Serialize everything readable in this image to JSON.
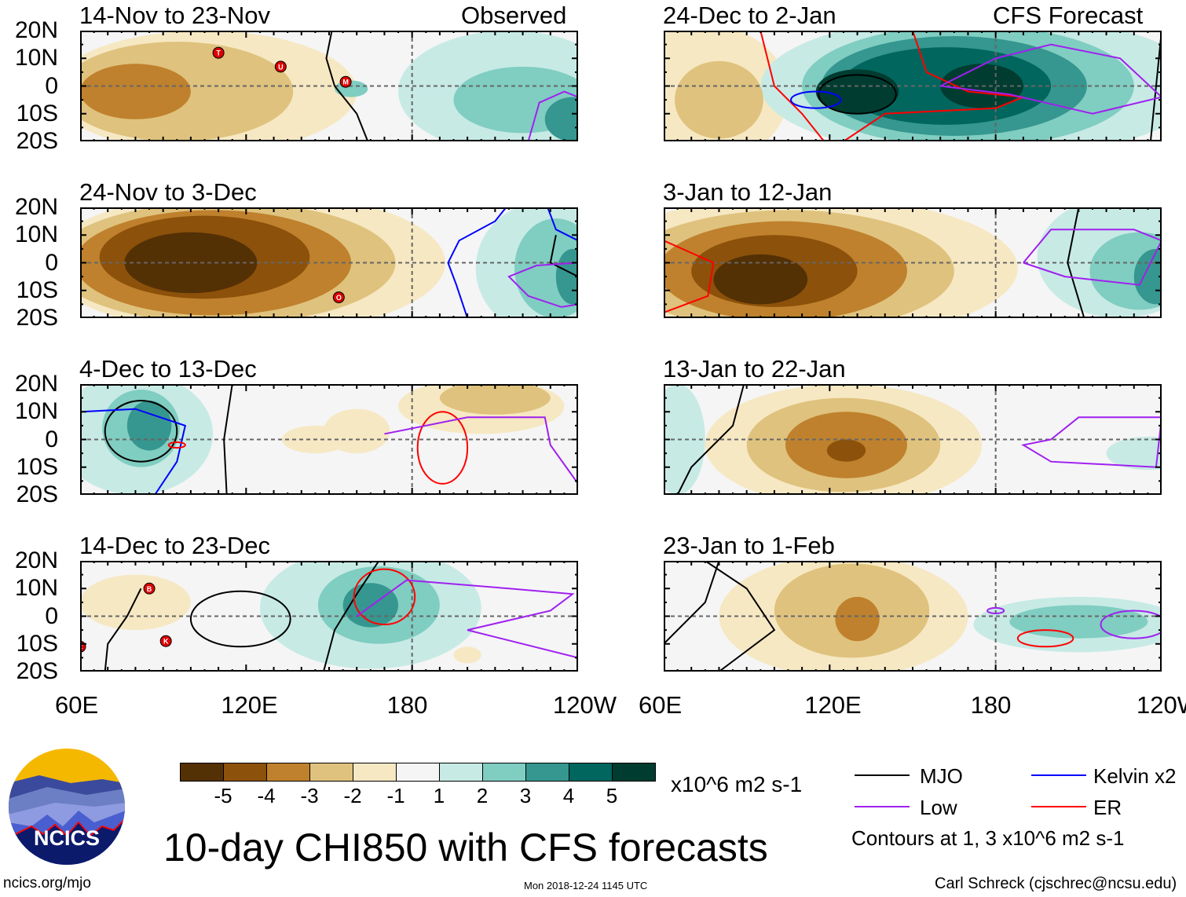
{
  "title": "10-day CHI850 with CFS forecasts",
  "timestamp": "Mon 2018-12-24 1145 UTC",
  "site": "ncics.org/mjo",
  "author": "Carl Schreck (cjschrec@ncsu.edu)",
  "logo_text": "NCICS",
  "column_labels": {
    "left": "Observed",
    "right": "CFS Forecast"
  },
  "lat_labels": [
    "20N",
    "10N",
    "0",
    "10S",
    "20S"
  ],
  "lon_labels": [
    "60E",
    "120E",
    "180",
    "120W"
  ],
  "colorbar": {
    "labels": [
      "-5",
      "-4",
      "-3",
      "-2",
      "-1",
      "1",
      "2",
      "3",
      "4",
      "5"
    ],
    "colors": [
      "#543005",
      "#8c510a",
      "#bf812d",
      "#dfc27d",
      "#f6e8c3",
      "#f5f5f5",
      "#c7eae5",
      "#80cdc1",
      "#35978f",
      "#01665e",
      "#003c30"
    ],
    "units": "x10^6 m2 s-1"
  },
  "legend": {
    "items": [
      {
        "label": "MJO",
        "color": "#000000"
      },
      {
        "label": "Kelvin x2",
        "color": "#0000ff"
      },
      {
        "label": "Low",
        "color": "#a020f0"
      },
      {
        "label": "ER",
        "color": "#ff0000"
      }
    ],
    "note": "Contours at 1, 3 x10^6 m2 s-1"
  },
  "panels": [
    {
      "title": "14-Nov to 23-Nov",
      "col": 0,
      "row": 0,
      "blobs": [
        [
          105,
          -2,
          55,
          22,
          -1
        ],
        [
          95,
          -2,
          42,
          18,
          -2
        ],
        [
          80,
          -2,
          20,
          10,
          -3
        ],
        [
          215,
          -2,
          40,
          22,
          1
        ],
        [
          220,
          -5,
          25,
          12,
          2
        ],
        [
          238,
          -12,
          10,
          8,
          3
        ],
        [
          158,
          -1,
          6,
          3,
          2
        ]
      ],
      "contours": [
        {
          "type": "MJO",
          "pts": [
            [
              151,
              20
            ],
            [
              149,
              10
            ],
            [
              152,
              0
            ],
            [
              160,
              -10
            ],
            [
              164,
              -20
            ]
          ]
        },
        {
          "type": "Low",
          "pts": [
            [
              222,
              -20
            ],
            [
              226,
              -6
            ],
            [
              235,
              -2
            ],
            [
              240,
              -4
            ]
          ]
        }
      ],
      "storms": [
        {
          "letter": "T",
          "lon": 110,
          "lat": 12
        },
        {
          "letter": "U",
          "lon": 132.5,
          "lat": 7
        },
        {
          "letter": "M",
          "lon": 156,
          "lat": 1.5
        }
      ]
    },
    {
      "title": "24-Nov to 3-Dec",
      "col": 0,
      "row": 1,
      "blobs": [
        [
          120,
          0,
          72,
          26,
          -1
        ],
        [
          112,
          0,
          62,
          22,
          -2
        ],
        [
          108,
          0,
          50,
          19,
          -3
        ],
        [
          105,
          2,
          38,
          15,
          -4
        ],
        [
          100,
          0,
          24,
          11,
          -5
        ],
        [
          228,
          -2,
          25,
          24,
          1
        ],
        [
          232,
          -2,
          15,
          18,
          2
        ],
        [
          238,
          -5,
          6,
          10,
          3
        ]
      ],
      "contours": [
        {
          "type": "Kelvin",
          "pts": [
            [
              200,
              -20
            ],
            [
              196,
              -8
            ],
            [
              193,
              0
            ],
            [
              197,
              8
            ],
            [
              210,
              15
            ],
            [
              214,
              20
            ]
          ]
        },
        {
          "type": "Kelvin",
          "pts": [
            [
              229,
              20
            ],
            [
              232,
              12
            ],
            [
              240,
              8
            ]
          ]
        },
        {
          "type": "MJO",
          "pts": [
            [
              232,
              10
            ],
            [
              230,
              0
            ],
            [
              240,
              -5
            ]
          ]
        },
        {
          "type": "Low",
          "pts": [
            [
              240,
              0
            ],
            [
              225,
              -1
            ],
            [
              215,
              -5
            ],
            [
              222,
              -12
            ],
            [
              234,
              -16
            ],
            [
              240,
              -15
            ]
          ]
        }
      ],
      "storms": [
        {
          "letter": "O",
          "lon": 153.5,
          "lat": -12.5
        }
      ]
    },
    {
      "title": "4-Dec to 13-Dec",
      "col": 0,
      "row": 2,
      "blobs": [
        [
          80,
          2,
          28,
          22,
          1
        ],
        [
          82,
          4,
          14,
          14,
          2
        ],
        [
          85,
          5,
          8,
          9,
          3
        ],
        [
          145,
          0,
          12,
          5,
          -1
        ],
        [
          160,
          3,
          12,
          8,
          -1
        ],
        [
          205,
          12,
          30,
          10,
          -1
        ],
        [
          210,
          15,
          20,
          6,
          -2
        ]
      ],
      "contours": [
        {
          "type": "MJO",
          "cx": 82,
          "cy": 3,
          "rx": 13,
          "ry": 11
        },
        {
          "type": "MJO",
          "pts": [
            [
              115,
              20
            ],
            [
              112,
              0
            ],
            [
              113,
              -20
            ]
          ]
        },
        {
          "type": "Kelvin",
          "pts": [
            [
              60,
              10
            ],
            [
              80,
              11
            ],
            [
              98,
              5
            ],
            [
              95,
              -8
            ],
            [
              87,
              -20
            ]
          ]
        },
        {
          "type": "ER",
          "cx": 191,
          "cy": -3,
          "rx": 9,
          "ry": 13
        },
        {
          "type": "ER",
          "cx": 95,
          "cy": -2,
          "rx": 3,
          "ry": 1
        },
        {
          "type": "Low",
          "pts": [
            [
              170,
              2
            ],
            [
              200,
              8
            ],
            [
              228,
              8
            ],
            [
              230,
              -2
            ],
            [
              240,
              -16
            ]
          ]
        }
      ],
      "storms": []
    },
    {
      "title": "14-Dec to 23-Dec",
      "col": 0,
      "row": 3,
      "blobs": [
        [
          80,
          5,
          20,
          10,
          -1
        ],
        [
          165,
          3,
          40,
          22,
          1
        ],
        [
          168,
          4,
          22,
          14,
          2
        ],
        [
          165,
          4,
          10,
          8,
          3
        ],
        [
          200,
          -14,
          5,
          3,
          -1
        ]
      ],
      "contours": [
        {
          "type": "MJO",
          "cx": 118,
          "cy": -1,
          "rx": 18,
          "ry": 10
        },
        {
          "type": "MJO",
          "pts": [
            [
              168,
              20
            ],
            [
              160,
              8
            ],
            [
              152,
              -5
            ],
            [
              148,
              -20
            ]
          ]
        },
        {
          "type": "MJO",
          "pts": [
            [
              82,
              10
            ],
            [
              77,
              0
            ],
            [
              70,
              -10
            ],
            [
              69,
              -20
            ]
          ]
        },
        {
          "type": "ER",
          "cx": 170,
          "cy": 7,
          "rx": 11,
          "ry": 10
        },
        {
          "type": "Low",
          "pts": [
            [
              160,
              0
            ],
            [
              178,
              13
            ],
            [
              215,
              10
            ],
            [
              238,
              8
            ],
            [
              230,
              2
            ],
            [
              200,
              -5
            ],
            [
              240,
              -15
            ]
          ]
        }
      ],
      "storms": [
        {
          "letter": "B",
          "lon": 85,
          "lat": 10
        },
        {
          "letter": "K",
          "lon": 91,
          "lat": -9
        },
        {
          "letter": "C",
          "lon": 60,
          "lat": -11
        }
      ]
    },
    {
      "title": "24-Dec to 2-Jan",
      "col": 1,
      "row": 0,
      "blobs": [
        [
          75,
          -3,
          30,
          25,
          -1
        ],
        [
          80,
          -5,
          16,
          14,
          -2
        ],
        [
          175,
          0,
          80,
          26,
          1
        ],
        [
          170,
          0,
          60,
          22,
          2
        ],
        [
          165,
          0,
          48,
          18,
          3
        ],
        [
          162,
          0,
          38,
          14,
          4
        ],
        [
          175,
          0,
          15,
          8,
          5
        ],
        [
          130,
          -2,
          15,
          8,
          5
        ]
      ],
      "contours": [
        {
          "type": "MJO",
          "cx": 130,
          "cy": -3,
          "rx": 14,
          "ry": 7
        },
        {
          "type": "MJO",
          "pts": [
            [
              236,
              -20
            ],
            [
              238,
              0
            ],
            [
              240,
              20
            ]
          ]
        },
        {
          "type": "ER",
          "pts": [
            [
              95,
              20
            ],
            [
              100,
              0
            ],
            [
              110,
              -10
            ],
            [
              118,
              -20
            ]
          ]
        },
        {
          "type": "ER",
          "pts": [
            [
              150,
              20
            ],
            [
              155,
              5
            ],
            [
              170,
              -2
            ],
            [
              190,
              -4
            ],
            [
              180,
              -8
            ],
            [
              140,
              -10
            ],
            [
              125,
              -20
            ]
          ]
        },
        {
          "type": "Kelvin",
          "cx": 115,
          "cy": -5,
          "rx": 9,
          "ry": 3
        },
        {
          "type": "Low",
          "pts": [
            [
              160,
              0
            ],
            [
              180,
              10
            ],
            [
              200,
              15
            ],
            [
              225,
              10
            ],
            [
              240,
              -4
            ],
            [
              215,
              -10
            ],
            [
              185,
              -3
            ],
            [
              160,
              0
            ]
          ]
        }
      ],
      "storms": []
    },
    {
      "title": "3-Jan to 12-Jan",
      "col": 1,
      "row": 1,
      "blobs": [
        [
          110,
          -2,
          78,
          26,
          -1
        ],
        [
          105,
          -3,
          60,
          22,
          -2
        ],
        [
          103,
          -3,
          45,
          18,
          -3
        ],
        [
          100,
          -3,
          30,
          13,
          -4
        ],
        [
          95,
          -6,
          17,
          9,
          -5
        ],
        [
          225,
          2,
          30,
          22,
          1
        ],
        [
          232,
          -3,
          18,
          14,
          2
        ],
        [
          238,
          -5,
          8,
          10,
          3
        ]
      ],
      "contours": [
        {
          "type": "ER",
          "pts": [
            [
              60,
              8
            ],
            [
              78,
              0
            ],
            [
              76,
              -12
            ],
            [
              60,
              -18
            ]
          ]
        },
        {
          "type": "MJO",
          "pts": [
            [
              210,
              20
            ],
            [
              206,
              0
            ],
            [
              212,
              -20
            ]
          ]
        },
        {
          "type": "Low",
          "pts": [
            [
              190,
              0
            ],
            [
              200,
              12
            ],
            [
              230,
              12
            ],
            [
              240,
              8
            ],
            [
              232,
              -8
            ],
            [
              205,
              -5
            ],
            [
              190,
              0
            ]
          ]
        }
      ],
      "storms": []
    },
    {
      "title": "13-Jan to 22-Jan",
      "col": 1,
      "row": 2,
      "blobs": [
        [
          125,
          -2,
          50,
          22,
          -1
        ],
        [
          125,
          -2,
          35,
          17,
          -2
        ],
        [
          126,
          -2,
          22,
          12,
          -3
        ],
        [
          126,
          -4,
          7,
          4,
          -4
        ],
        [
          65,
          0,
          10,
          20,
          1
        ],
        [
          235,
          -5,
          15,
          6,
          1
        ]
      ],
      "contours": [
        {
          "type": "MJO",
          "pts": [
            [
              89,
              20
            ],
            [
              85,
              5
            ],
            [
              70,
              -10
            ],
            [
              65,
              -20
            ]
          ]
        },
        {
          "type": "Low",
          "pts": [
            [
              200,
              0
            ],
            [
              210,
              8
            ],
            [
              240,
              8
            ],
            [
              238,
              -10
            ],
            [
              200,
              -8
            ],
            [
              190,
              -2
            ],
            [
              200,
              0
            ]
          ]
        }
      ],
      "storms": []
    },
    {
      "title": "23-Jan to 1-Feb",
      "col": 1,
      "row": 3,
      "blobs": [
        [
          125,
          0,
          45,
          22,
          -1
        ],
        [
          128,
          2,
          28,
          17,
          -2
        ],
        [
          130,
          -1,
          8,
          8,
          -3
        ],
        [
          210,
          -3,
          38,
          10,
          1
        ],
        [
          210,
          -2,
          25,
          6,
          2
        ]
      ],
      "contours": [
        {
          "type": "MJO",
          "pts": [
            [
              75,
              20
            ],
            [
              90,
              10
            ],
            [
              100,
              -5
            ],
            [
              80,
              -20
            ]
          ]
        },
        {
          "type": "MJO",
          "pts": [
            [
              60,
              -10
            ],
            [
              75,
              5
            ],
            [
              80,
              20
            ]
          ]
        },
        {
          "type": "ER",
          "cx": 198,
          "cy": -8,
          "rx": 10,
          "ry": 3
        },
        {
          "type": "Low",
          "cx": 230,
          "cy": -3,
          "rx": 12,
          "ry": 5
        },
        {
          "type": "Low",
          "cx": 180,
          "cy": 2,
          "rx": 3,
          "ry": 1
        }
      ],
      "storms": []
    }
  ]
}
